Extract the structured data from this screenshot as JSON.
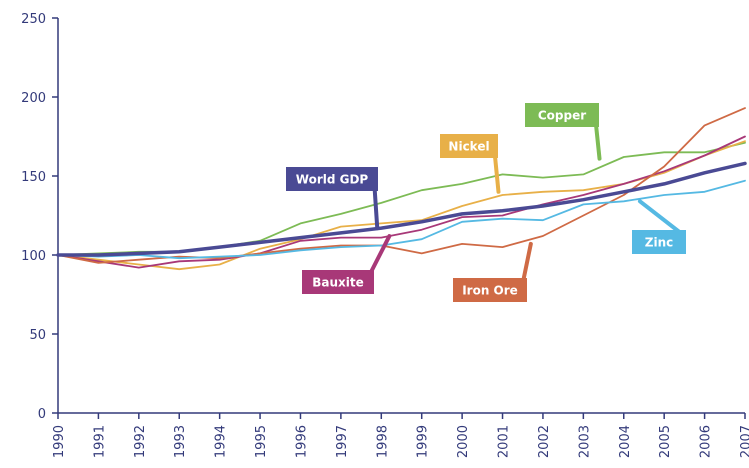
{
  "chart_data": {
    "type": "line",
    "title": "",
    "xlabel": "",
    "ylabel": "",
    "ylim": [
      0,
      250
    ],
    "xlim": [
      1990,
      2007
    ],
    "yticks": [
      0,
      50,
      100,
      150,
      200,
      250
    ],
    "x_tick_labels": [
      "1990",
      "1991",
      "1992",
      "1993",
      "1994",
      "1995",
      "1996",
      "1997",
      "1998",
      "1999",
      "2000",
      "2001",
      "2002",
      "2003",
      "2004",
      "2005",
      "2006",
      "2007"
    ],
    "grid": false,
    "x": [
      1990,
      1991,
      1992,
      1993,
      1994,
      1995,
      1996,
      1997,
      1998,
      1999,
      2000,
      2001,
      2002,
      2003,
      2004,
      2005,
      2006,
      2007
    ],
    "series": [
      {
        "name": "World GDP",
        "color": "#4a4a94",
        "values": [
          100,
          100,
          101,
          102,
          105,
          108,
          111,
          114,
          117,
          121,
          126,
          128,
          131,
          135,
          140,
          145,
          152,
          158
        ]
      },
      {
        "name": "Copper",
        "color": "#7dbb55",
        "values": [
          100,
          101,
          102,
          102,
          105,
          109,
          120,
          126,
          133,
          141,
          145,
          151,
          149,
          151,
          162,
          165,
          165,
          171
        ]
      },
      {
        "name": "Nickel",
        "color": "#e8b048",
        "values": [
          100,
          97,
          94,
          91,
          94,
          104,
          110,
          118,
          120,
          122,
          131,
          138,
          140,
          141,
          145,
          152,
          163,
          172
        ]
      },
      {
        "name": "Bauxite",
        "color": "#a83878",
        "values": [
          100,
          96,
          92,
          96,
          97,
          101,
          109,
          111,
          111,
          116,
          124,
          125,
          132,
          138,
          145,
          153,
          163,
          175
        ]
      },
      {
        "name": "Iron Ore",
        "color": "#cf6a45",
        "values": [
          100,
          95,
          97,
          99,
          98,
          101,
          104,
          106,
          106,
          101,
          107,
          105,
          112,
          125,
          138,
          156,
          182,
          193
        ]
      },
      {
        "name": "Zinc",
        "color": "#55b9e3",
        "values": [
          100,
          99,
          100,
          98,
          99,
          100,
          103,
          105,
          106,
          110,
          121,
          123,
          122,
          132,
          134,
          138,
          140,
          147
        ]
      }
    ],
    "callouts": [
      {
        "label": "World GDP",
        "color": "#4a4a94",
        "anchor_x": 1997.9,
        "anchor_y": 117
      },
      {
        "label": "Copper",
        "color": "#7dbb55",
        "anchor_x": 2003.4,
        "anchor_y": 161
      },
      {
        "label": "Nickel",
        "color": "#e8b048",
        "anchor_x": 2000.9,
        "anchor_y": 140
      },
      {
        "label": "Bauxite",
        "color": "#a83878",
        "anchor_x": 1998.2,
        "anchor_y": 112
      },
      {
        "label": "Iron Ore",
        "color": "#cf6a45",
        "anchor_x": 2001.7,
        "anchor_y": 107
      },
      {
        "label": "Zinc",
        "color": "#55b9e3",
        "anchor_x": 2004.4,
        "anchor_y": 134
      }
    ],
    "axis_color": "#333a7a"
  }
}
